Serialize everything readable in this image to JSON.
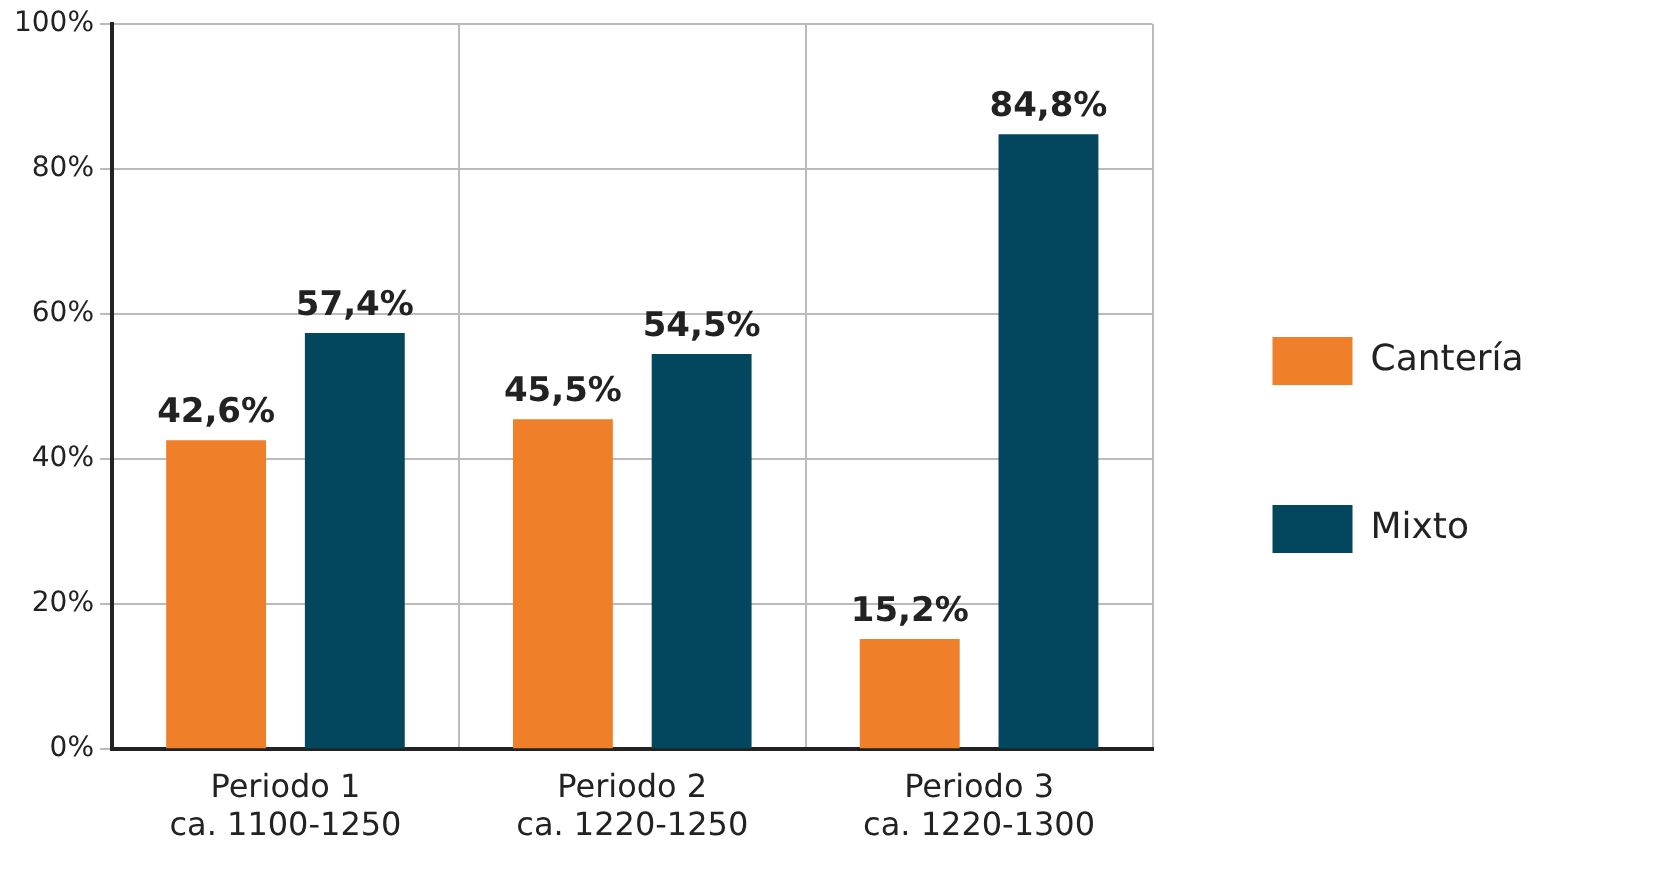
{
  "chart_data": {
    "type": "bar",
    "categories": [
      "Periodo 1\nca. 1100-1250",
      "Periodo 2\nca. 1220-1250",
      "Periodo 3\nca. 1220-1300"
    ],
    "series": [
      {
        "name": "Cantería",
        "color": "#f07f2a",
        "values": [
          42.6,
          45.5,
          15.2
        ],
        "value_labels": [
          "42,6%",
          "45,5%",
          "15,2%"
        ]
      },
      {
        "name": "Mixto",
        "color": "#03475f",
        "values": [
          57.4,
          54.5,
          84.8
        ],
        "value_labels": [
          "57,4%",
          "54,5%",
          "84,8%"
        ]
      }
    ],
    "ylim": [
      0,
      100
    ],
    "yticks": [
      {
        "value": 0,
        "label": "0%"
      },
      {
        "value": 20,
        "label": "20%"
      },
      {
        "value": 40,
        "label": "40%"
      },
      {
        "value": 60,
        "label": "60%"
      },
      {
        "value": 80,
        "label": "80%"
      },
      {
        "value": 100,
        "label": "100%"
      }
    ],
    "grid": true,
    "legend": "right"
  }
}
